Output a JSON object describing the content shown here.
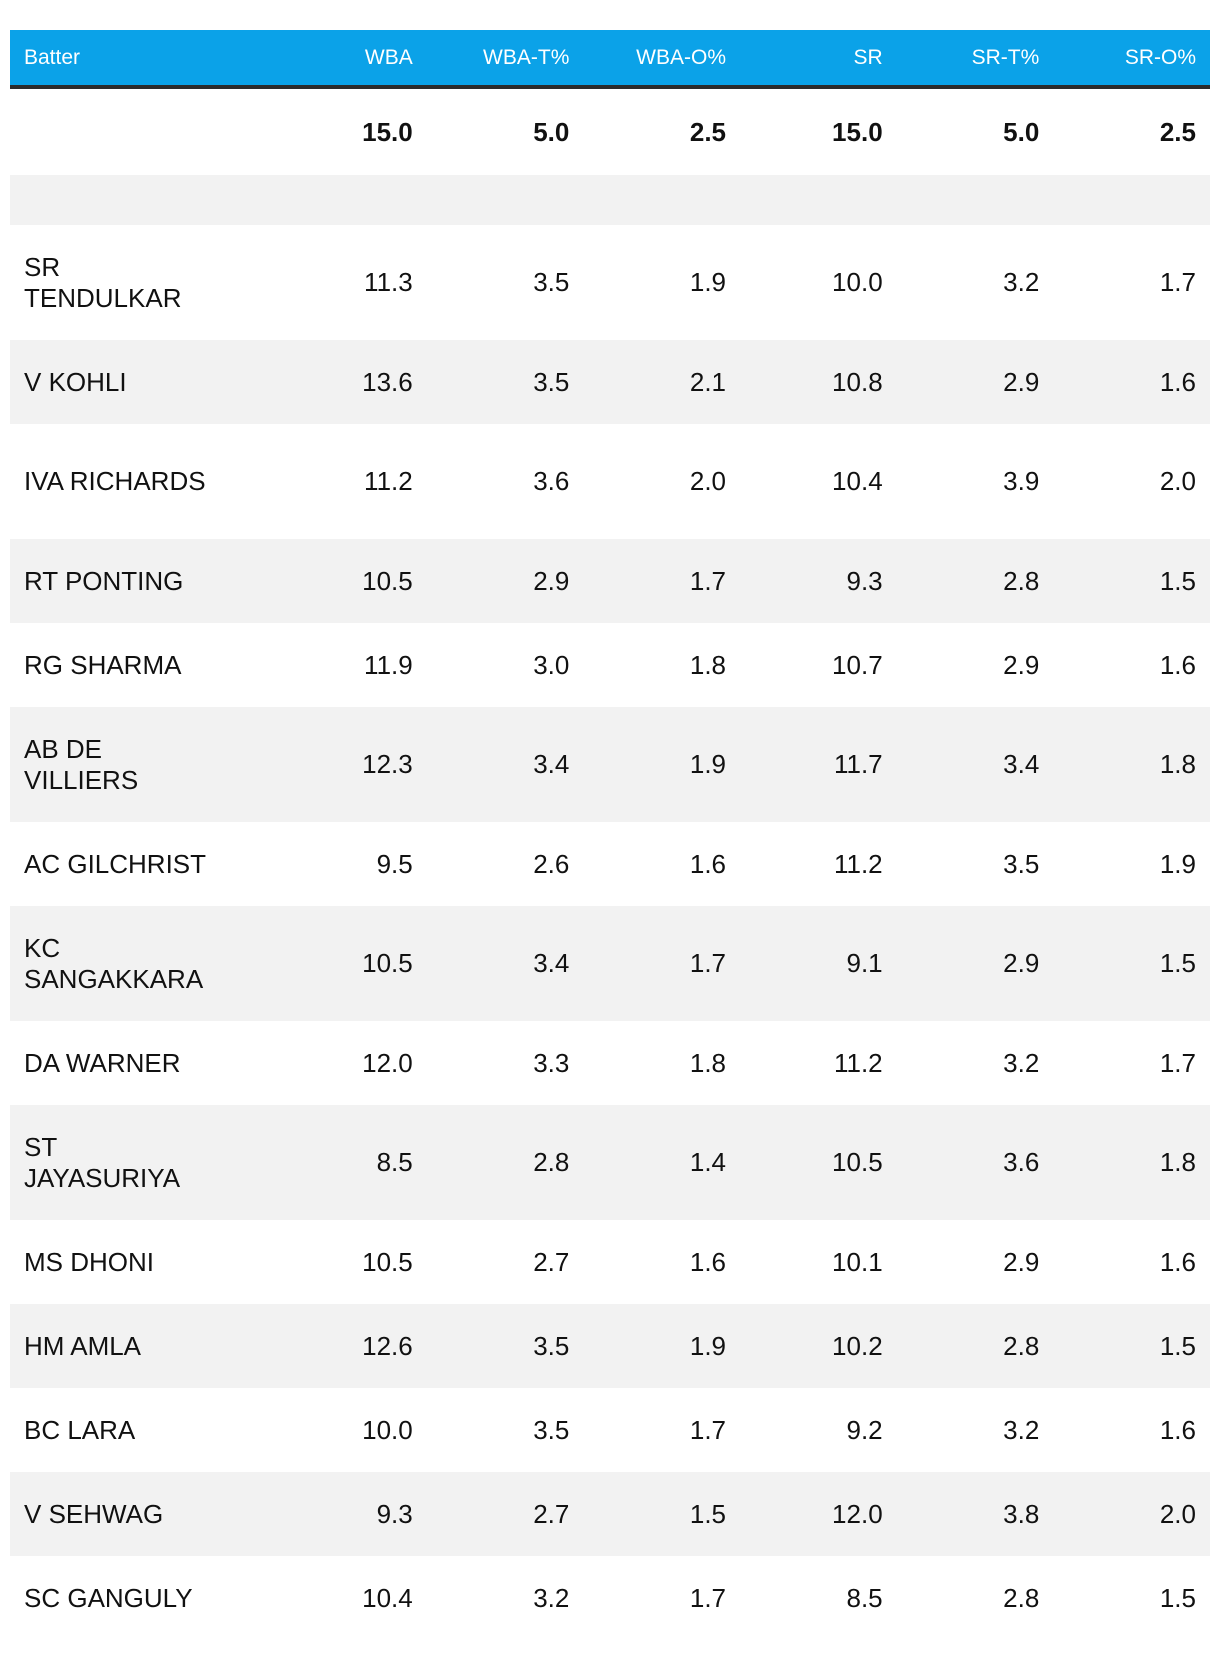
{
  "columns": [
    "Batter",
    "WBA",
    "WBA-T%",
    "WBA-O%",
    "SR",
    "SR-T%",
    "SR-O%"
  ],
  "weights": [
    "",
    "15.0",
    "5.0",
    "2.5",
    "15.0",
    "5.0",
    "2.5"
  ],
  "rows": [
    [
      "SR TENDULKAR",
      "11.3",
      "3.5",
      "1.9",
      "10.0",
      "3.2",
      "1.7"
    ],
    [
      "V KOHLI",
      "13.6",
      "3.5",
      "2.1",
      "10.8",
      "2.9",
      "1.6"
    ],
    [
      "IVA RICHARDS",
      "11.2",
      "3.6",
      "2.0",
      "10.4",
      "3.9",
      "2.0"
    ],
    [
      "RT PONTING",
      "10.5",
      "2.9",
      "1.7",
      "9.3",
      "2.8",
      "1.5"
    ],
    [
      "RG SHARMA",
      "11.9",
      "3.0",
      "1.8",
      "10.7",
      "2.9",
      "1.6"
    ],
    [
      "AB DE VILLIERS",
      "12.3",
      "3.4",
      "1.9",
      "11.7",
      "3.4",
      "1.8"
    ],
    [
      "AC GILCHRIST",
      "9.5",
      "2.6",
      "1.6",
      "11.2",
      "3.5",
      "1.9"
    ],
    [
      "KC SANGAKKARA",
      "10.5",
      "3.4",
      "1.7",
      "9.1",
      "2.9",
      "1.5"
    ],
    [
      "DA WARNER",
      "12.0",
      "3.3",
      "1.8",
      "11.2",
      "3.2",
      "1.7"
    ],
    [
      "ST JAYASURIYA",
      "8.5",
      "2.8",
      "1.4",
      "10.5",
      "3.6",
      "1.8"
    ],
    [
      "MS DHONI",
      "10.5",
      "2.7",
      "1.6",
      "10.1",
      "2.9",
      "1.6"
    ],
    [
      "HM AMLA",
      "12.6",
      "3.5",
      "1.9",
      "10.2",
      "2.8",
      "1.5"
    ],
    [
      "BC LARA",
      "10.0",
      "3.5",
      "1.7",
      "9.2",
      "3.2",
      "1.6"
    ],
    [
      "V SEHWAG",
      "9.3",
      "2.7",
      "1.5",
      "12.0",
      "3.8",
      "2.0"
    ],
    [
      "SC GANGULY",
      "10.4",
      "3.2",
      "1.7",
      "8.5",
      "2.8",
      "1.5"
    ]
  ],
  "colors": {
    "header_bg": "#0ba2e8",
    "header_border": "#2b2b2b",
    "stripe": "#f2f2f2"
  }
}
